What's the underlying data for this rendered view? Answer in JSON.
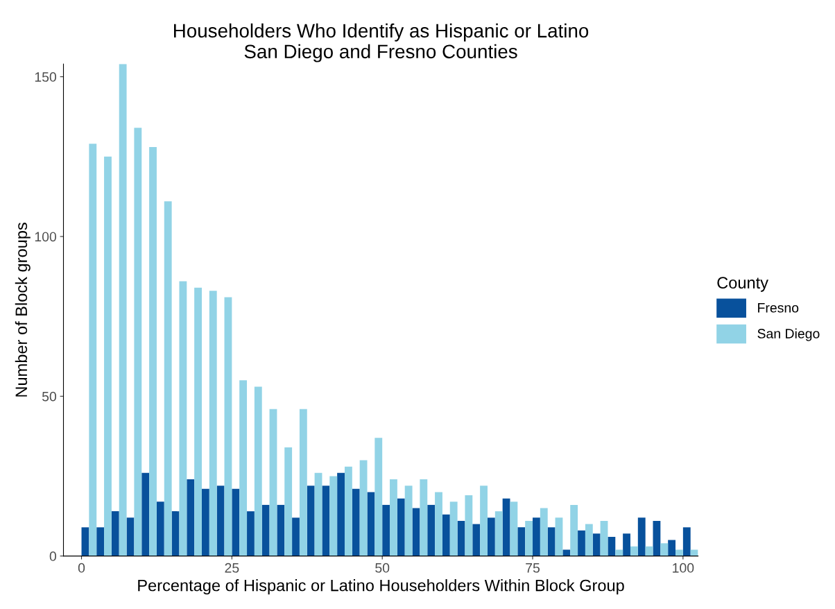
{
  "chart_data": {
    "type": "histogram",
    "title": "Householders Who Identify as Hispanic or Latino\nSan Diego and Fresno Counties",
    "xlabel": "Percentage of Hispanic or Latino Householders Within Block Group",
    "ylabel": "Number of Block groups",
    "legend_title": "County",
    "bins": [
      0,
      2.5,
      5,
      7.5,
      10,
      12.5,
      15,
      17.5,
      20,
      22.5,
      25,
      27.5,
      30,
      32.5,
      35,
      37.5,
      40,
      42.5,
      45,
      47.5,
      50,
      52.5,
      55,
      57.5,
      60,
      62.5,
      65,
      67.5,
      70,
      72.5,
      75,
      77.5,
      80,
      82.5,
      85,
      87.5,
      90,
      92.5,
      95,
      97.5,
      100,
      102.5
    ],
    "series": [
      {
        "name": "Fresno",
        "color": "#08519c",
        "values": [
          9,
          9,
          14,
          12,
          26,
          17,
          14,
          24,
          21,
          22,
          21,
          14,
          16,
          16,
          12,
          22,
          22,
          26,
          21,
          20,
          16,
          18,
          15,
          16,
          13,
          11,
          10,
          12,
          18,
          9,
          12,
          9,
          2,
          8,
          7,
          6,
          7,
          12,
          11,
          5,
          9
        ]
      },
      {
        "name": "San Diego",
        "color": "#91d3e6",
        "values": [
          129,
          125,
          154,
          134,
          128,
          111,
          86,
          84,
          83,
          81,
          55,
          53,
          46,
          34,
          46,
          26,
          25,
          28,
          30,
          37,
          24,
          22,
          24,
          20,
          17,
          19,
          22,
          14,
          17,
          11,
          15,
          12,
          16,
          10,
          11,
          2,
          3,
          3,
          4,
          2,
          2
        ]
      }
    ],
    "xlim": [
      -3,
      102.5
    ],
    "ylim": [
      0,
      154
    ],
    "xticks": [
      0,
      25,
      50,
      75,
      100
    ],
    "yticks": [
      0,
      50,
      100,
      150
    ],
    "grid": false,
    "legend": "right"
  }
}
